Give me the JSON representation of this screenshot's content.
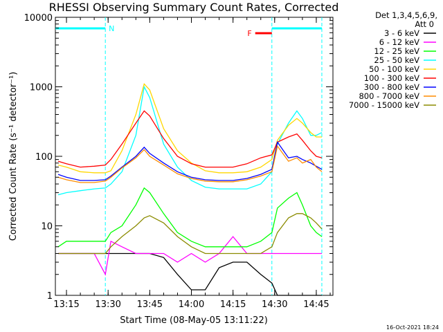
{
  "chart_data": {
    "type": "line",
    "title": "RHESSI Observing Summary Count Rates, Corrected",
    "xlabel": "Start Time (08-May-05 13:11:22)",
    "ylabel": "Corrected Count Rate (s⁻¹ detector⁻¹)",
    "yscale": "log",
    "ylim": [
      1,
      10000
    ],
    "xlim": [
      "13:11",
      "14:51"
    ],
    "x_ticks": [
      "13:15",
      "13:30",
      "13:45",
      "14:00",
      "14:15",
      "14:30",
      "14:45"
    ],
    "y_ticks": [
      "1",
      "10",
      "100",
      "1000",
      "10000"
    ],
    "legend_header": [
      "Det 1,3,4,5,6,9,",
      "Att 0"
    ],
    "legend_position": "right",
    "timestamp": "16-Oct-2021 18:24",
    "markers": [
      {
        "label": "N",
        "start": "13:11",
        "end": "13:29",
        "color": "#00ffff"
      },
      {
        "label": "F",
        "start": "14:23",
        "end": "14:29",
        "color": "#ff0000"
      }
    ],
    "night_boundaries": [
      "13:29",
      "14:29",
      "14:47"
    ],
    "x": [
      "13:12",
      "13:15",
      "13:20",
      "13:25",
      "13:29",
      "13:31",
      "13:35",
      "13:40",
      "13:43",
      "13:45",
      "13:50",
      "13:55",
      "14:00",
      "14:05",
      "14:10",
      "14:15",
      "14:20",
      "14:25",
      "14:29",
      "14:31",
      "14:35",
      "14:38",
      "14:40",
      "14:43",
      "14:45",
      "14:47"
    ],
    "series": [
      {
        "name": "3 - 6 keV",
        "color": "#000000",
        "values": [
          4,
          4,
          4,
          4,
          4,
          4,
          4,
          4,
          4,
          4,
          3.5,
          2,
          1.2,
          1.2,
          2.5,
          3,
          3,
          2,
          1.5,
          1,
          1,
          1,
          1,
          1,
          1,
          1
        ]
      },
      {
        "name": "6 - 12 keV",
        "color": "#ff00ff",
        "values": [
          4,
          4,
          4,
          4,
          2,
          6,
          5,
          4,
          4,
          4,
          4,
          3,
          4,
          3,
          4,
          7,
          4,
          4,
          4,
          4,
          4,
          4,
          4,
          4,
          4,
          4
        ]
      },
      {
        "name": "12 - 25 keV",
        "color": "#00ff00",
        "values": [
          5,
          6,
          6,
          6,
          6,
          8,
          10,
          20,
          35,
          30,
          15,
          8,
          6,
          5,
          5,
          5,
          5,
          6,
          8,
          18,
          25,
          30,
          20,
          10,
          8,
          7
        ]
      },
      {
        "name": "25 - 50 keV",
        "color": "#00ffff",
        "values": [
          28,
          30,
          32,
          34,
          35,
          40,
          60,
          200,
          1000,
          700,
          150,
          70,
          45,
          36,
          34,
          34,
          34,
          40,
          60,
          150,
          300,
          450,
          350,
          200,
          200,
          220
        ]
      },
      {
        "name": "50 - 100 keV",
        "color": "#ffd700",
        "values": [
          75,
          70,
          60,
          58,
          58,
          62,
          120,
          400,
          1100,
          900,
          250,
          120,
          80,
          62,
          58,
          58,
          60,
          70,
          90,
          170,
          280,
          350,
          300,
          220,
          190,
          190
        ]
      },
      {
        "name": "100 - 300 keV",
        "color": "#ff0000",
        "values": [
          85,
          78,
          70,
          72,
          75,
          90,
          150,
          300,
          450,
          380,
          180,
          100,
          78,
          70,
          70,
          70,
          78,
          95,
          105,
          160,
          190,
          210,
          170,
          120,
          100,
          95
        ]
      },
      {
        "name": "300 - 800 keV",
        "color": "#0000ff",
        "values": [
          55,
          50,
          45,
          45,
          46,
          52,
          70,
          100,
          135,
          110,
          80,
          60,
          50,
          46,
          45,
          45,
          48,
          55,
          65,
          160,
          95,
          100,
          90,
          80,
          72,
          65
        ]
      },
      {
        "name": "800 - 7000 keV",
        "color": "#ff8c00",
        "values": [
          50,
          46,
          42,
          42,
          44,
          50,
          68,
          95,
          125,
          100,
          75,
          56,
          48,
          44,
          43,
          43,
          46,
          52,
          60,
          140,
          85,
          95,
          80,
          90,
          70,
          60
        ]
      },
      {
        "name": "7000 - 15000 keV",
        "color": "#8b8b00",
        "values": [
          4,
          4,
          4,
          4,
          4,
          5,
          7,
          10,
          13,
          14,
          11,
          7,
          5,
          4,
          4,
          4,
          4,
          4,
          5,
          8,
          13,
          15,
          15,
          13,
          11,
          9
        ]
      }
    ]
  }
}
